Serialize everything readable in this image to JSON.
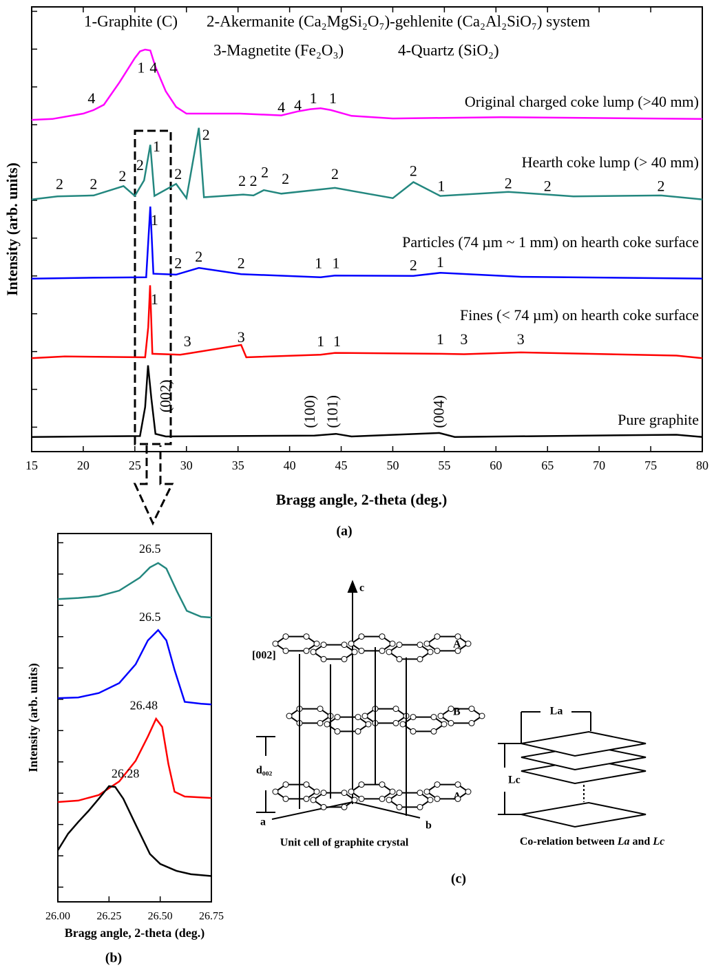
{
  "chart_data": [
    {
      "type": "line",
      "xlabel": "Bragg angle, 2-theta (deg.)",
      "ylabel": "Intensity (arb. units)",
      "panel_label": "(a)",
      "header": [
        "1-Graphite (C)",
        "2-Akermanite (Ca₂MgSi₂O₇)-gehlenite (Ca₂Al₂SiO₇) system",
        "3-Magnetite (Fe₂O₃)",
        "4-Quartz (SiO₂)"
      ],
      "xlim": [
        15,
        80
      ],
      "xticks": [
        15,
        20,
        25,
        30,
        35,
        40,
        45,
        50,
        55,
        60,
        65,
        70,
        75,
        80
      ],
      "ylim": [
        0,
        100
      ],
      "yticks": [
        5.5,
        14,
        22.5,
        31,
        39.5,
        48,
        56.5,
        65,
        73.5,
        82,
        90.5,
        99
      ],
      "series": [
        {
          "name": "Original charged coke lump (>40 mm)",
          "color": "#ff00ff",
          "x": [
            15,
            17,
            20,
            21,
            22,
            23.5,
            25,
            25.5,
            26,
            26.5,
            27,
            28,
            29,
            30,
            33.2,
            35.2,
            39.2,
            40.8,
            42,
            43,
            44,
            46,
            50,
            60.5,
            80
          ],
          "values": [
            74.6,
            74.8,
            76,
            76.8,
            78,
            83,
            88.5,
            90,
            90.4,
            90.2,
            86.5,
            81,
            77.5,
            76,
            76,
            76,
            75.6,
            76.5,
            77,
            77.2,
            76.8,
            75.5,
            74.9,
            75.2,
            74.8
          ]
        },
        {
          "name": "Hearth coke lump (> 40 mm)",
          "color": "#23877f",
          "x": [
            15,
            17.5,
            21,
            23.9,
            25,
            25.9,
            26.5,
            26.9,
            29,
            30,
            31.2,
            31.7,
            35.5,
            36.5,
            37.5,
            39.2,
            44.4,
            50,
            52,
            54.6,
            61.2,
            65,
            67.5,
            76,
            80
          ],
          "values": [
            56.7,
            57.4,
            57.6,
            59.7,
            57.5,
            61,
            69,
            57.5,
            60.2,
            57,
            72.8,
            57.2,
            57.8,
            57.6,
            58.8,
            58,
            59.3,
            57,
            60.6,
            57.5,
            58.4,
            57.8,
            57.4,
            57.6,
            56.7
          ]
        },
        {
          "name": "Particles (74 µm ~ 1 mm) on hearth coke surface",
          "color": "#0000ff",
          "x": [
            15,
            21,
            26.1,
            26.5,
            26.8,
            29,
            31.2,
            35.3,
            43,
            44.4,
            52,
            54.6,
            62.5,
            80
          ],
          "values": [
            38.9,
            39.1,
            39.2,
            55.1,
            40,
            39.8,
            41.3,
            39.9,
            39.2,
            39.6,
            39.5,
            40.2,
            39.3,
            38.9
          ]
        },
        {
          "name": "Fines (< 74 µm) on hearth coke surface",
          "color": "#ff0000",
          "x": [
            15,
            18.2,
            26,
            26.3,
            26.48,
            26.7,
            29.4,
            30,
            35.3,
            35.8,
            43,
            44.4,
            54.6,
            56.9,
            62.4,
            77.5,
            80
          ],
          "values": [
            21,
            21.4,
            21.2,
            28,
            37.4,
            22,
            21.8,
            22,
            24,
            21.2,
            21.8,
            22.2,
            22,
            21.9,
            22.3,
            21.6,
            21
          ]
        },
        {
          "name": "Pure graphite",
          "color": "#000000",
          "x": [
            15,
            25.5,
            26,
            26.28,
            26.6,
            27,
            28,
            42.4,
            44.5,
            46,
            54.5,
            56,
            77.5,
            80
          ],
          "values": [
            3.3,
            3.5,
            10,
            19.4,
            12,
            4,
            3.4,
            3.6,
            4,
            3.4,
            4.2,
            3.3,
            3.8,
            3.3
          ]
        }
      ],
      "annotations": [
        {
          "text": "4",
          "x": 20.8,
          "y": 79.1
        },
        {
          "text": "1",
          "x": 25.6,
          "y": 86
        },
        {
          "text": "4",
          "x": 26.8,
          "y": 86
        },
        {
          "text": "4",
          "x": 39.2,
          "y": 77.1
        },
        {
          "text": "4",
          "x": 40.8,
          "y": 77.6
        },
        {
          "text": "1",
          "x": 42.3,
          "y": 79.1
        },
        {
          "text": "1",
          "x": 44.2,
          "y": 79.1
        },
        {
          "text": "2",
          "x": 17.7,
          "y": 59.8
        },
        {
          "text": "2",
          "x": 21,
          "y": 59.8
        },
        {
          "text": "2",
          "x": 23.8,
          "y": 61.6
        },
        {
          "text": "2",
          "x": 25.5,
          "y": 64.1
        },
        {
          "text": "1",
          "x": 27.1,
          "y": 68.3
        },
        {
          "text": "2",
          "x": 29.2,
          "y": 62.1
        },
        {
          "text": "2",
          "x": 31.9,
          "y": 70.9
        },
        {
          "text": "2",
          "x": 35.4,
          "y": 60.5
        },
        {
          "text": "2",
          "x": 36.5,
          "y": 60.5
        },
        {
          "text": "2",
          "x": 37.6,
          "y": 62.5
        },
        {
          "text": "2",
          "x": 39.6,
          "y": 61
        },
        {
          "text": "2",
          "x": 44.4,
          "y": 62.1
        },
        {
          "text": "2",
          "x": 52,
          "y": 62.8
        },
        {
          "text": "1",
          "x": 54.7,
          "y": 59.4
        },
        {
          "text": "2",
          "x": 61.2,
          "y": 60
        },
        {
          "text": "2",
          "x": 65,
          "y": 59.4
        },
        {
          "text": "2",
          "x": 76,
          "y": 59.4
        },
        {
          "text": "1",
          "x": 26.9,
          "y": 51.7
        },
        {
          "text": "2",
          "x": 29.2,
          "y": 42
        },
        {
          "text": "2",
          "x": 31.2,
          "y": 43.5
        },
        {
          "text": "2",
          "x": 35.3,
          "y": 42
        },
        {
          "text": "1",
          "x": 42.8,
          "y": 42
        },
        {
          "text": "1",
          "x": 44.5,
          "y": 42
        },
        {
          "text": "2",
          "x": 52,
          "y": 41.6
        },
        {
          "text": "1",
          "x": 54.6,
          "y": 42.3
        },
        {
          "text": "1",
          "x": 26.9,
          "y": 33.9
        },
        {
          "text": "3",
          "x": 30.1,
          "y": 24.5
        },
        {
          "text": "3",
          "x": 35.3,
          "y": 25.4
        },
        {
          "text": "1",
          "x": 43,
          "y": 24.5
        },
        {
          "text": "1",
          "x": 44.6,
          "y": 24.5
        },
        {
          "text": "1",
          "x": 54.6,
          "y": 24.9
        },
        {
          "text": "3",
          "x": 56.9,
          "y": 24.9
        },
        {
          "text": "3",
          "x": 62.4,
          "y": 24.9
        },
        {
          "text": "(002)",
          "x": 28.1,
          "y": 12.5,
          "rotation": -90
        },
        {
          "text": "(100)",
          "x": 42.1,
          "y": 9,
          "rotation": -90
        },
        {
          "text": "(101)",
          "x": 44.3,
          "y": 9,
          "rotation": -90
        },
        {
          "text": "(004)",
          "x": 54.6,
          "y": 9,
          "rotation": -90
        }
      ]
    },
    {
      "type": "line",
      "xlabel": "Bragg angle, 2-theta (deg.)",
      "ylabel": "Intensity (arb. units)",
      "panel_label": "(b)",
      "xlim": [
        26,
        26.75
      ],
      "xticks": [
        {
          "value": 26,
          "label": "26.00"
        },
        {
          "value": 26.25,
          "label": "26.25"
        },
        {
          "value": 26.5,
          "label": "26.50"
        },
        {
          "value": 26.75,
          "label": "26.75"
        }
      ],
      "ylim": [
        0,
        100
      ],
      "yticks": [
        4,
        12.5,
        21,
        29.5,
        38,
        46.5,
        55,
        63.5,
        72,
        80.5,
        89,
        97.5
      ],
      "series": [
        {
          "color": "#23877f",
          "x": [
            26,
            26.1,
            26.2,
            26.3,
            26.4,
            26.45,
            26.49,
            26.53,
            26.58,
            26.63,
            26.7,
            26.75
          ],
          "values": [
            82.2,
            82.5,
            83,
            84.5,
            88,
            90.8,
            92,
            90.5,
            84.5,
            79,
            77.4,
            77.2
          ]
        },
        {
          "color": "#0000ff",
          "x": [
            26,
            26.1,
            26.2,
            26.3,
            26.38,
            26.44,
            26.49,
            26.53,
            26.57,
            26.62,
            26.7,
            26.75
          ],
          "values": [
            55.3,
            55.5,
            56.7,
            59.4,
            64.5,
            71,
            73.8,
            71,
            63,
            54.3,
            53.8,
            53.6
          ]
        },
        {
          "color": "#ff0000",
          "x": [
            26,
            26.1,
            26.2,
            26.3,
            26.38,
            26.44,
            26.48,
            26.51,
            26.54,
            26.57,
            26.62,
            26.75
          ],
          "values": [
            27.1,
            27.5,
            29,
            32.7,
            38.3,
            44.9,
            49.7,
            47.5,
            37.4,
            29.9,
            28.6,
            28.2
          ]
        },
        {
          "color": "#000000",
          "x": [
            26,
            26.05,
            26.1,
            26.15,
            26.2,
            26.25,
            26.28,
            26.32,
            26.38,
            26.45,
            26.5,
            26.58,
            26.65,
            26.75
          ],
          "values": [
            14,
            18.5,
            21.7,
            24.7,
            28,
            31.4,
            31.2,
            28,
            21,
            13,
            10.3,
            8.4,
            7.5,
            7
          ]
        }
      ],
      "annotations": [
        {
          "text": "26.5",
          "x": 26.45,
          "y": 95.5
        },
        {
          "text": "26.5",
          "x": 26.45,
          "y": 77
        },
        {
          "text": "26.48",
          "x": 26.42,
          "y": 53
        },
        {
          "text": "26.28",
          "x": 26.33,
          "y": 34.5
        }
      ]
    }
  ],
  "diagram": {
    "axis_c": "c",
    "plane": "[002]",
    "layer_top": "A",
    "layer_middle": "B",
    "layer_bottom": "A",
    "spacing": "d₀₀₂",
    "axis_a": "a",
    "axis_b": "b",
    "caption_left": "Unit cell of graphite crystal",
    "la": "La",
    "lc": "Lc",
    "caption_right": [
      "Co-relation between ",
      "La",
      " and ",
      "Lc"
    ],
    "panel_label": "(c)"
  }
}
